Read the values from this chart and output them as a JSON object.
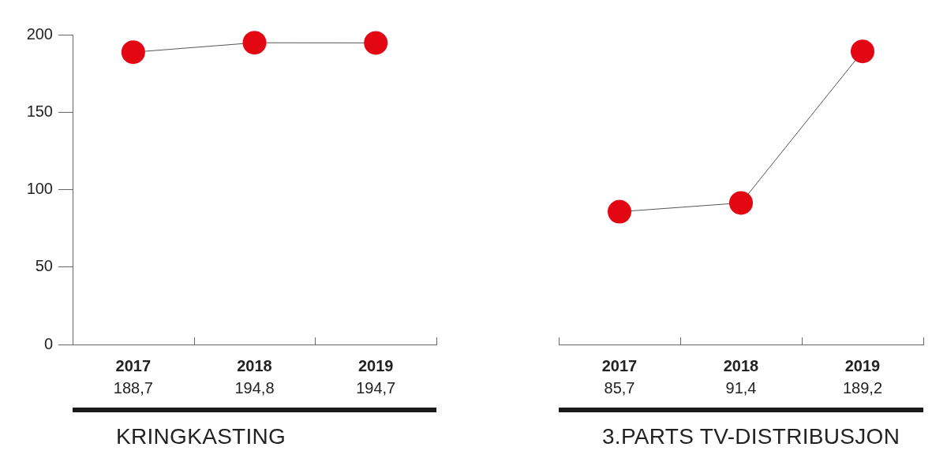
{
  "chart_data": [
    {
      "type": "line",
      "title": "KRINGKASTING",
      "categories": [
        "2017",
        "2018",
        "2019"
      ],
      "values": [
        188.7,
        194.8,
        194.7
      ],
      "value_labels": [
        "188,7",
        "194,8",
        "194,7"
      ],
      "color": "#e30613",
      "ylim": [
        0,
        200
      ],
      "yticks": [
        0,
        50,
        100,
        150,
        200
      ],
      "marker": "circle",
      "line_style": "solid"
    },
    {
      "type": "line",
      "title": "3.PARTS TV-DISTRIBUSJON",
      "categories": [
        "2017",
        "2018",
        "2019"
      ],
      "values": [
        85.7,
        91.4,
        189.2
      ],
      "value_labels": [
        "85,7",
        "91,4",
        "189,2"
      ],
      "color": "#e30613",
      "ylim": [
        0,
        200
      ],
      "tick_labels": "x",
      "marker": "circle",
      "line_style": "solid"
    }
  ]
}
